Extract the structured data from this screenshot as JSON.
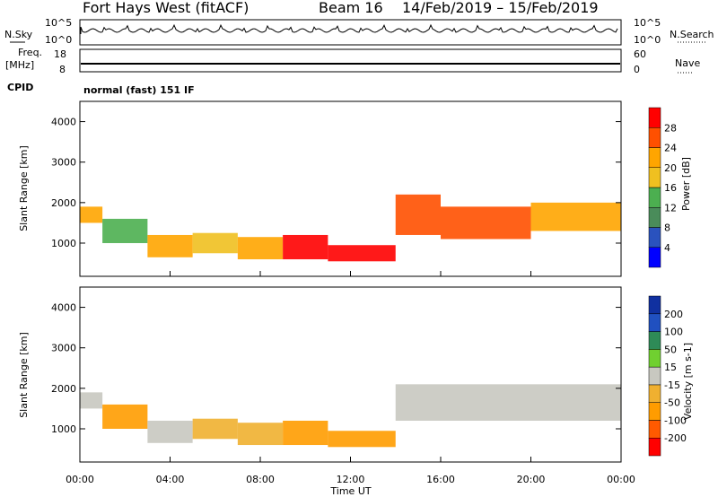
{
  "header": {
    "title": "Fort Hays West (fitACF)",
    "beam": "Beam 16",
    "date_range": "14/Feb/2019 – 15/Feb/2019"
  },
  "aux_panels": {
    "nsky_label": "N.Sky",
    "nsky_ticks": [
      "10^5",
      "10^0"
    ],
    "nsearch_label": "N.Search",
    "nsearch_ticks": [
      "10^5",
      "10^0"
    ],
    "freq_label_1": "Freq.",
    "freq_label_2": "[MHz]",
    "freq_ticks": [
      "18",
      "8"
    ],
    "nave_label": "Nave",
    "nave_ticks": [
      "60",
      "0"
    ],
    "cpid_label": "CPID",
    "cpid_value": "normal (fast) 151 IF"
  },
  "chart_data": [
    {
      "type": "heatmap",
      "name": "power",
      "ylabel": "Slant Range [km]",
      "yticks": [
        "4000",
        "3000",
        "2000",
        "1000"
      ],
      "ylim": [
        180,
        4500
      ],
      "colorbar_label": "Power [dB]",
      "colorbar_ticks": [
        "28",
        "24",
        "20",
        "16",
        "12",
        "8",
        "4"
      ],
      "colors": [
        "#0000ff",
        "#2a52be",
        "#4a8c5a",
        "#4caf50",
        "#f0c020",
        "#ffa500",
        "#ff5000",
        "#ff0000"
      ],
      "bands": [
        {
          "x": [
            0,
            1
          ],
          "y": [
            1500,
            1900
          ],
          "level": 5
        },
        {
          "x": [
            1,
            3
          ],
          "y": [
            1000,
            1600
          ],
          "level": 3
        },
        {
          "x": [
            3,
            5
          ],
          "y": [
            650,
            1200
          ],
          "level": 5
        },
        {
          "x": [
            5,
            7
          ],
          "y": [
            750,
            1250
          ],
          "level": 4
        },
        {
          "x": [
            7,
            9
          ],
          "y": [
            600,
            1150
          ],
          "level": 5
        },
        {
          "x": [
            9,
            11
          ],
          "y": [
            600,
            1200
          ],
          "level": 7
        },
        {
          "x": [
            11,
            14
          ],
          "y": [
            550,
            950
          ],
          "level": 7
        },
        {
          "x": [
            14,
            16
          ],
          "y": [
            1200,
            2200
          ],
          "level": 6
        },
        {
          "x": [
            16,
            20
          ],
          "y": [
            1100,
            1900
          ],
          "level": 6
        },
        {
          "x": [
            20,
            24
          ],
          "y": [
            1300,
            2000
          ],
          "level": 5
        }
      ]
    },
    {
      "type": "heatmap",
      "name": "velocity",
      "ylabel": "Slant Range [km]",
      "xlabel": "Time UT",
      "xticks": [
        "00:00",
        "04:00",
        "08:00",
        "12:00",
        "16:00",
        "20:00",
        "00:00"
      ],
      "yticks": [
        "4000",
        "3000",
        "2000",
        "1000"
      ],
      "ylim": [
        180,
        4500
      ],
      "colorbar_label": "Velocity [m s-1]",
      "colorbar_ticks": [
        "200",
        "100",
        "50",
        "15",
        "-15",
        "-50",
        "-100",
        "-200"
      ],
      "colors": [
        "#ff0000",
        "#ff5a00",
        "#ff9c00",
        "#f0b030",
        "#c8c8c0",
        "#70d030",
        "#2e8b57",
        "#2050c0",
        "#1030a0"
      ],
      "bands": [
        {
          "x": [
            0,
            1
          ],
          "y": [
            1500,
            1900
          ],
          "color_index": 4
        },
        {
          "x": [
            1,
            3
          ],
          "y": [
            1000,
            1600
          ],
          "color_index": 2
        },
        {
          "x": [
            3,
            5
          ],
          "y": [
            650,
            1200
          ],
          "color_index": 4
        },
        {
          "x": [
            5,
            7
          ],
          "y": [
            750,
            1250
          ],
          "color_index": 3
        },
        {
          "x": [
            7,
            9
          ],
          "y": [
            600,
            1150
          ],
          "color_index": 3
        },
        {
          "x": [
            9,
            11
          ],
          "y": [
            600,
            1200
          ],
          "color_index": 2
        },
        {
          "x": [
            11,
            14
          ],
          "y": [
            550,
            950
          ],
          "color_index": 2
        },
        {
          "x": [
            14,
            24
          ],
          "y": [
            1200,
            2100
          ],
          "color_index": 4
        }
      ]
    }
  ]
}
